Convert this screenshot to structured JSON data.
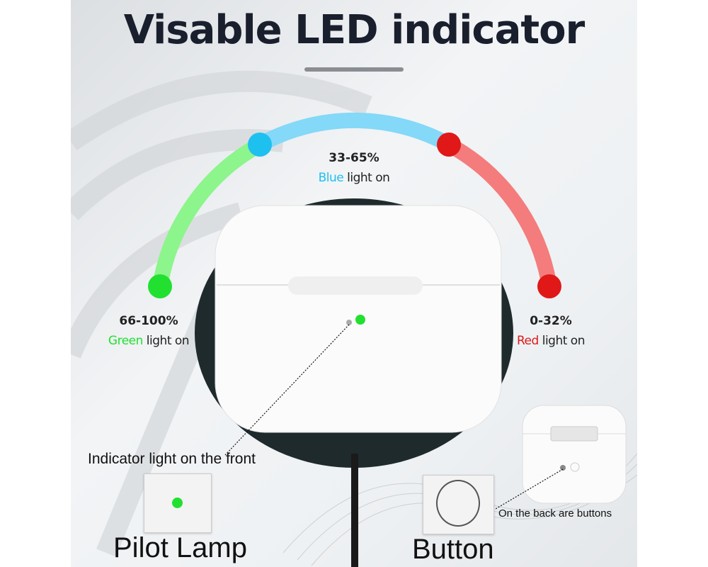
{
  "title": "Visable LED indicator",
  "levels": [
    {
      "range": "66-100%",
      "color_word": "Green",
      "suffix": " light on",
      "color": "#22e030"
    },
    {
      "range": "33-65%",
      "color_word": "Blue",
      "suffix": " light on",
      "color": "#1ec0f0"
    },
    {
      "range": "0-32%",
      "color_word": "Red",
      "suffix": " light on",
      "color": "#e01818"
    }
  ],
  "arc_colors": {
    "green": "#8cf58c",
    "blue": "#84d8f8",
    "red": "#f47c7c"
  },
  "front_caption": "Indicator light on the front",
  "back_caption": "On the back are buttons",
  "pilot_lamp_label": "Pilot Lamp",
  "button_label": "Button"
}
